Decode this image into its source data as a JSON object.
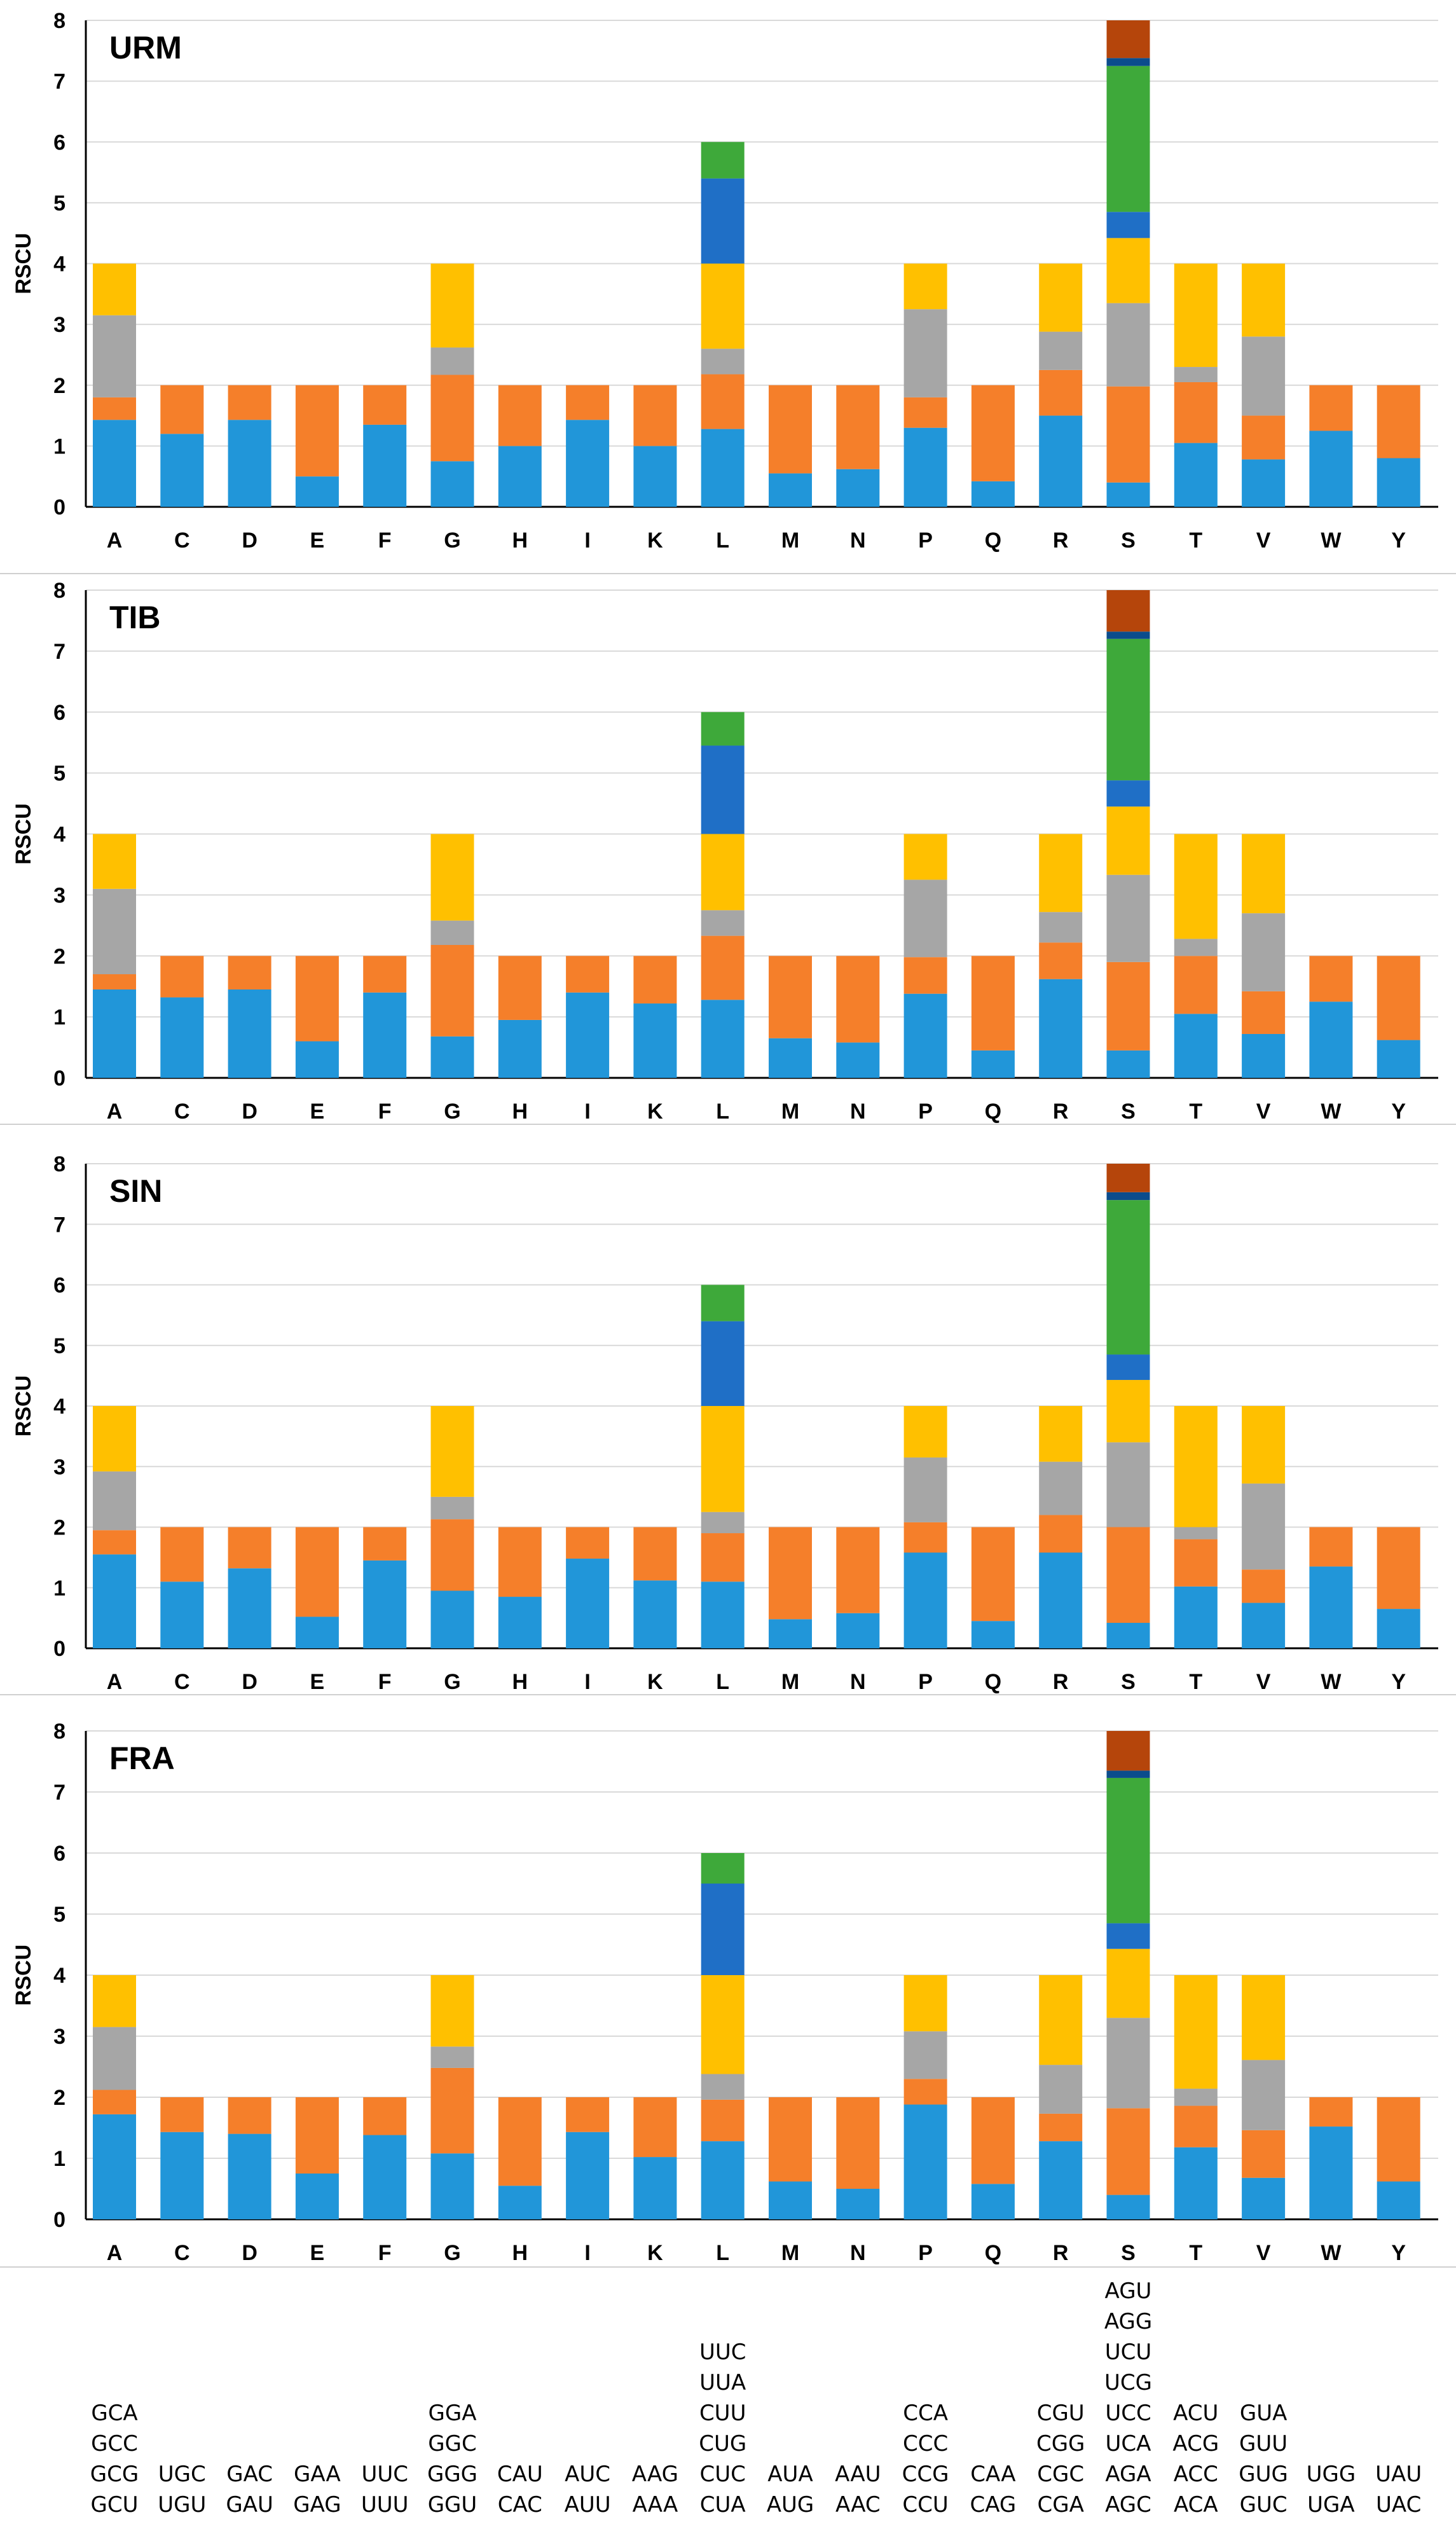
{
  "palette": [
    "#2196d9",
    "#f57f2a",
    "#a6a6a6",
    "#ffc000",
    "#1f6fc6",
    "#3ea93a",
    "#0b4c8c",
    "#b5450b"
  ],
  "chart_data": [
    {
      "type": "bar",
      "stacked": true,
      "title": "URM",
      "ylabel": "RSCU",
      "ylim": [
        0,
        8
      ],
      "yticks": [
        0,
        1,
        2,
        3,
        4,
        5,
        6,
        7,
        8
      ],
      "grid": true,
      "categories": [
        "A",
        "C",
        "D",
        "E",
        "F",
        "G",
        "H",
        "I",
        "K",
        "L",
        "M",
        "N",
        "P",
        "Q",
        "R",
        "S",
        "T",
        "V",
        "W",
        "Y"
      ],
      "stacks": [
        [
          1.43,
          0.37,
          1.35,
          0.85
        ],
        [
          1.2,
          0.8
        ],
        [
          1.43,
          0.57
        ],
        [
          0.5,
          1.5
        ],
        [
          1.35,
          0.65
        ],
        [
          0.75,
          1.42,
          0.45,
          1.38
        ],
        [
          1.0,
          1.0
        ],
        [
          1.43,
          0.57
        ],
        [
          1.0,
          1.0
        ],
        [
          1.28,
          0.9,
          0.42,
          1.4,
          1.4,
          0.6
        ],
        [
          0.55,
          1.45
        ],
        [
          0.62,
          1.38
        ],
        [
          1.3,
          0.5,
          1.45,
          0.75
        ],
        [
          0.42,
          1.58
        ],
        [
          1.5,
          0.75,
          0.63,
          1.12
        ],
        [
          0.4,
          1.58,
          1.37,
          1.07,
          0.43,
          2.4,
          0.13,
          0.62
        ],
        [
          1.05,
          1.0,
          0.25,
          1.7
        ],
        [
          0.78,
          0.72,
          1.3,
          1.2
        ],
        [
          1.25,
          0.75
        ],
        [
          0.8,
          1.2
        ]
      ]
    },
    {
      "type": "bar",
      "stacked": true,
      "title": "TIB",
      "ylabel": "RSCU",
      "ylim": [
        0,
        8
      ],
      "yticks": [
        0,
        1,
        2,
        3,
        4,
        5,
        6,
        7,
        8
      ],
      "grid": true,
      "categories": [
        "A",
        "C",
        "D",
        "E",
        "F",
        "G",
        "H",
        "I",
        "K",
        "L",
        "M",
        "N",
        "P",
        "Q",
        "R",
        "S",
        "T",
        "V",
        "W",
        "Y"
      ],
      "stacks": [
        [
          1.45,
          0.25,
          1.4,
          0.9
        ],
        [
          1.32,
          0.68
        ],
        [
          1.45,
          0.55
        ],
        [
          0.6,
          1.4
        ],
        [
          1.4,
          0.6
        ],
        [
          0.68,
          1.5,
          0.4,
          1.42
        ],
        [
          0.95,
          1.05
        ],
        [
          1.4,
          0.6
        ],
        [
          1.22,
          0.78
        ],
        [
          1.28,
          1.05,
          0.42,
          1.25,
          1.45,
          0.55
        ],
        [
          0.65,
          1.35
        ],
        [
          0.58,
          1.42
        ],
        [
          1.38,
          0.6,
          1.27,
          0.75
        ],
        [
          0.45,
          1.55
        ],
        [
          1.62,
          0.6,
          0.5,
          1.28
        ],
        [
          0.45,
          1.45,
          1.43,
          1.12,
          0.43,
          2.32,
          0.12,
          0.68
        ],
        [
          1.05,
          0.95,
          0.28,
          1.72
        ],
        [
          0.72,
          0.7,
          1.28,
          1.3
        ],
        [
          1.25,
          0.75
        ],
        [
          0.62,
          1.38
        ]
      ]
    },
    {
      "type": "bar",
      "stacked": true,
      "title": "SIN",
      "ylabel": "RSCU",
      "ylim": [
        0,
        8
      ],
      "yticks": [
        0,
        1,
        2,
        3,
        4,
        5,
        6,
        7,
        8
      ],
      "grid": true,
      "categories": [
        "A",
        "C",
        "D",
        "E",
        "F",
        "G",
        "H",
        "I",
        "K",
        "L",
        "M",
        "N",
        "P",
        "Q",
        "R",
        "S",
        "T",
        "V",
        "W",
        "Y"
      ],
      "stacks": [
        [
          1.55,
          0.4,
          0.97,
          1.08
        ],
        [
          1.1,
          0.9
        ],
        [
          1.32,
          0.68
        ],
        [
          0.52,
          1.48
        ],
        [
          1.45,
          0.55
        ],
        [
          0.95,
          1.18,
          0.37,
          1.5
        ],
        [
          0.85,
          1.15
        ],
        [
          1.48,
          0.52
        ],
        [
          1.12,
          0.88
        ],
        [
          1.1,
          0.8,
          0.35,
          1.75,
          1.4,
          0.6
        ],
        [
          0.48,
          1.52
        ],
        [
          0.58,
          1.42
        ],
        [
          1.58,
          0.5,
          1.07,
          0.85
        ],
        [
          0.45,
          1.55
        ],
        [
          1.58,
          0.62,
          0.88,
          0.92
        ],
        [
          0.42,
          1.58,
          1.4,
          1.03,
          0.42,
          2.55,
          0.13,
          0.47
        ],
        [
          1.02,
          0.78,
          0.2,
          2.0
        ],
        [
          0.75,
          0.55,
          1.42,
          1.28
        ],
        [
          1.35,
          0.65
        ],
        [
          0.65,
          1.35
        ]
      ]
    },
    {
      "type": "bar",
      "stacked": true,
      "title": "FRA",
      "ylabel": "RSCU",
      "ylim": [
        0,
        8
      ],
      "yticks": [
        0,
        1,
        2,
        3,
        4,
        5,
        6,
        7,
        8
      ],
      "grid": true,
      "categories": [
        "A",
        "C",
        "D",
        "E",
        "F",
        "G",
        "H",
        "I",
        "K",
        "L",
        "M",
        "N",
        "P",
        "Q",
        "R",
        "S",
        "T",
        "V",
        "W",
        "Y"
      ],
      "stacks": [
        [
          1.72,
          0.4,
          1.03,
          0.85
        ],
        [
          1.43,
          0.57
        ],
        [
          1.4,
          0.6
        ],
        [
          0.75,
          1.25
        ],
        [
          1.38,
          0.62
        ],
        [
          1.08,
          1.4,
          0.35,
          1.17
        ],
        [
          0.55,
          1.45
        ],
        [
          1.43,
          0.57
        ],
        [
          1.02,
          0.98
        ],
        [
          1.28,
          0.68,
          0.42,
          1.62,
          1.5,
          0.5
        ],
        [
          0.62,
          1.38
        ],
        [
          0.5,
          1.5
        ],
        [
          1.88,
          0.42,
          0.78,
          0.92
        ],
        [
          0.58,
          1.42
        ],
        [
          1.28,
          0.45,
          0.8,
          1.47
        ],
        [
          0.4,
          1.42,
          1.48,
          1.13,
          0.42,
          2.38,
          0.12,
          0.65
        ],
        [
          1.18,
          0.68,
          0.28,
          1.86
        ],
        [
          0.68,
          0.78,
          1.15,
          1.39
        ],
        [
          1.52,
          0.48
        ],
        [
          0.62,
          1.38
        ]
      ]
    }
  ],
  "codon_table": [
    [
      "GCU",
      "GCG",
      "GCC",
      "GCA"
    ],
    [
      "UGU",
      "UGC"
    ],
    [
      "GAU",
      "GAC"
    ],
    [
      "GAG",
      "GAA"
    ],
    [
      "UUU",
      "UUC"
    ],
    [
      "GGU",
      "GGG",
      "GGC",
      "GGA"
    ],
    [
      "CAC",
      "CAU"
    ],
    [
      "AUU",
      "AUC"
    ],
    [
      "AAA",
      "AAG"
    ],
    [
      "CUA",
      "CUC",
      "CUG",
      "CUU",
      "UUA",
      "UUC"
    ],
    [
      "AUG",
      "AUA"
    ],
    [
      "AAC",
      "AAU"
    ],
    [
      "CCU",
      "CCG",
      "CCC",
      "CCA"
    ],
    [
      "CAG",
      "CAA"
    ],
    [
      "CGA",
      "CGC",
      "CGG",
      "CGU"
    ],
    [
      "AGC",
      "AGA",
      "UCA",
      "UCC",
      "UCG",
      "UCU",
      "AGG",
      "AGU"
    ],
    [
      "ACA",
      "ACC",
      "ACG",
      "ACU"
    ],
    [
      "GUC",
      "GUG",
      "GUU",
      "GUA"
    ],
    [
      "UGA",
      "UGG"
    ],
    [
      "UAC",
      "UAU"
    ]
  ]
}
